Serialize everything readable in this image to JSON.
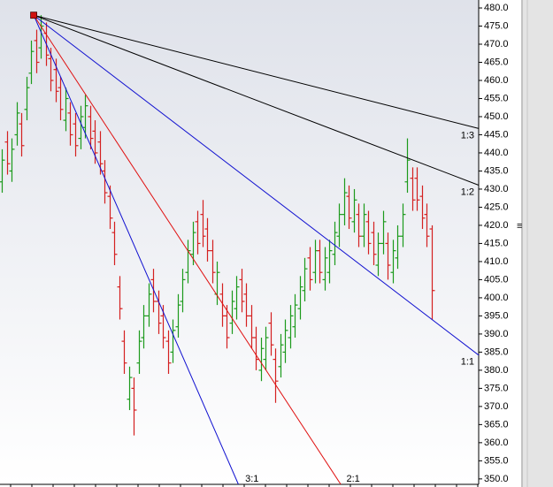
{
  "chart_data": {
    "type": "ohlc",
    "open": [
      432,
      443,
      435,
      445,
      448,
      452,
      462,
      471,
      469,
      473,
      466,
      463,
      458,
      449,
      451,
      448,
      444,
      447,
      450,
      446,
      443,
      435,
      428,
      418,
      403,
      388,
      372,
      375,
      382,
      389,
      395,
      405,
      399,
      395,
      388,
      385,
      392,
      399,
      407,
      412,
      421,
      423,
      419,
      413,
      401,
      401,
      395,
      393,
      397,
      405,
      401,
      395,
      389,
      380,
      383,
      393,
      383,
      381,
      385,
      389,
      392,
      397,
      402,
      411,
      407,
      413,
      405,
      407,
      412,
      417,
      423,
      428,
      421,
      423,
      417,
      421,
      418,
      409,
      415,
      415,
      407,
      411,
      417,
      432,
      433,
      433,
      428,
      423,
      419
    ],
    "high": [
      441,
      446,
      444,
      454,
      451,
      461,
      471,
      474,
      478,
      476,
      469,
      466,
      461,
      458,
      454,
      451,
      453,
      456,
      453,
      449,
      446,
      438,
      431,
      421,
      406,
      391,
      381,
      378,
      391,
      398,
      404,
      408,
      402,
      398,
      391,
      394,
      401,
      408,
      416,
      421,
      424,
      427,
      422,
      416,
      410,
      404,
      398,
      402,
      406,
      408,
      404,
      398,
      392,
      389,
      392,
      396,
      386,
      390,
      394,
      398,
      401,
      406,
      411,
      414,
      416,
      416,
      414,
      416,
      421,
      426,
      433,
      431,
      430,
      426,
      426,
      424,
      421,
      418,
      424,
      418,
      416,
      420,
      426,
      444,
      436,
      436,
      431,
      426,
      420
    ],
    "low": [
      429,
      434,
      432,
      442,
      439,
      449,
      459,
      462,
      466,
      464,
      457,
      454,
      449,
      446,
      442,
      439,
      441,
      444,
      441,
      437,
      434,
      426,
      419,
      409,
      394,
      379,
      369,
      362,
      379,
      386,
      392,
      396,
      390,
      386,
      379,
      382,
      389,
      396,
      404,
      409,
      412,
      414,
      410,
      404,
      398,
      392,
      386,
      390,
      394,
      396,
      392,
      386,
      380,
      377,
      380,
      384,
      371,
      378,
      382,
      386,
      389,
      394,
      399,
      402,
      404,
      404,
      402,
      404,
      409,
      414,
      420,
      419,
      418,
      414,
      414,
      412,
      409,
      406,
      412,
      405,
      404,
      408,
      414,
      429,
      424,
      424,
      419,
      414,
      394
    ],
    "close": [
      438,
      437,
      441,
      451,
      442,
      458,
      468,
      465,
      475,
      467,
      460,
      457,
      452,
      455,
      445,
      442,
      450,
      453,
      444,
      440,
      437,
      429,
      422,
      412,
      397,
      382,
      378,
      369,
      388,
      395,
      401,
      399,
      393,
      389,
      382,
      391,
      398,
      405,
      413,
      418,
      415,
      417,
      413,
      407,
      407,
      395,
      389,
      399,
      403,
      399,
      395,
      389,
      383,
      386,
      389,
      387,
      377,
      387,
      391,
      395,
      398,
      403,
      408,
      405,
      413,
      407,
      411,
      413,
      418,
      423,
      429,
      422,
      427,
      417,
      423,
      415,
      412,
      415,
      421,
      409,
      413,
      417,
      423,
      438,
      427,
      427,
      422,
      417,
      402
    ],
    "up_color": "#1c9a1c",
    "down_color": "#d42020",
    "xlim": [
      -0.4,
      97.6
    ],
    "ylim": [
      348.5,
      482.2
    ],
    "yticks": [
      {
        "value": 480,
        "label": "480.0"
      },
      {
        "value": 475,
        "label": "475.0"
      },
      {
        "value": 470,
        "label": "470.0"
      },
      {
        "value": 465,
        "label": "465.0"
      },
      {
        "value": 460,
        "label": "460.0"
      },
      {
        "value": 455,
        "label": "455.0"
      },
      {
        "value": 450,
        "label": "450.0"
      },
      {
        "value": 445,
        "label": "445.0"
      },
      {
        "value": 440,
        "label": "440.0"
      },
      {
        "value": 435,
        "label": "435.0"
      },
      {
        "value": 430,
        "label": "430.0"
      },
      {
        "value": 425,
        "label": "425.0"
      },
      {
        "value": 420,
        "label": "420.0"
      },
      {
        "value": 415,
        "label": "415.0"
      },
      {
        "value": 410,
        "label": "410.0"
      },
      {
        "value": 405,
        "label": "405.0"
      },
      {
        "value": 400,
        "label": "400.0"
      },
      {
        "value": 395,
        "label": "395.0"
      },
      {
        "value": 390,
        "label": "390.0"
      },
      {
        "value": 385,
        "label": "385.0"
      },
      {
        "value": 380,
        "label": "380.0"
      },
      {
        "value": 375,
        "label": "375.0"
      },
      {
        "value": 370,
        "label": "370.0"
      },
      {
        "value": 365,
        "label": "365.0"
      },
      {
        "value": 360,
        "label": "360.0"
      },
      {
        "value": 355,
        "label": "355.0"
      },
      {
        "value": 350,
        "label": "350.0"
      }
    ],
    "fan": {
      "origin": {
        "bar": 6.5,
        "price": 478
      },
      "unit": 1.03,
      "marker_color": "#d01010",
      "lines": [
        {
          "label": "1:3",
          "ratio": 0.3333,
          "color": "#000000"
        },
        {
          "label": "1:2",
          "ratio": 0.5,
          "color": "#000000"
        },
        {
          "label": "1:1",
          "ratio": 1,
          "color": "#1010d0"
        },
        {
          "label": "2:1",
          "ratio": 2,
          "color": "#e01010"
        },
        {
          "label": "3:1",
          "ratio": 3,
          "color": "#1010d0"
        }
      ]
    }
  }
}
